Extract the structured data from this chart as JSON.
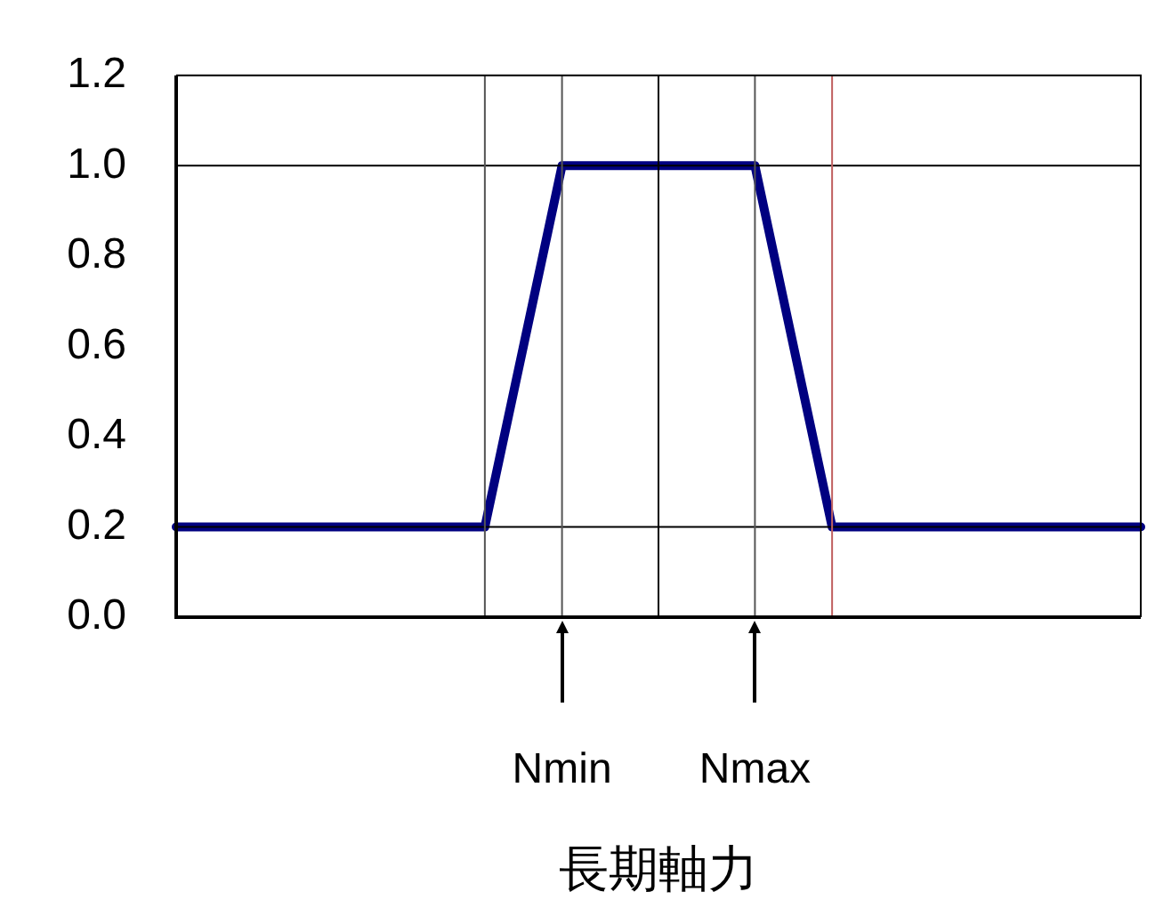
{
  "chart_data": {
    "type": "line",
    "xlabel": "長期軸力",
    "categories": [
      null,
      null,
      null,
      null,
      null,
      null,
      null,
      null,
      null,
      null,
      null,
      null,
      null,
      null,
      null,
      null,
      null,
      null,
      null,
      null,
      "Nmin",
      null,
      null,
      null,
      null,
      null,
      null,
      null,
      null,
      null,
      "Nmax",
      null,
      null,
      null,
      null,
      null,
      null,
      null,
      null,
      null,
      null,
      null,
      null,
      null,
      null,
      null,
      null,
      null,
      null,
      null,
      null
    ],
    "series": [
      {
        "color": "#000080",
        "values": [
          0.2,
          null,
          null,
          null,
          null,
          null,
          null,
          null,
          null,
          null,
          null,
          null,
          null,
          null,
          null,
          null,
          0.2,
          null,
          null,
          null,
          1.0,
          null,
          null,
          null,
          null,
          null,
          null,
          null,
          null,
          null,
          1.0,
          null,
          null,
          null,
          0.2,
          null,
          null,
          null,
          null,
          null,
          null,
          null,
          null,
          null,
          null,
          null,
          null,
          null,
          null,
          null,
          0.2
        ]
      }
    ],
    "ylim": [
      0,
      1.2
    ],
    "yticks": [
      {
        "value": 0,
        "label": "0.0"
      },
      {
        "value": 0.2,
        "label": "0.2"
      },
      {
        "value": 0.4,
        "label": "0.4"
      },
      {
        "value": 0.6,
        "label": "0.6"
      },
      {
        "value": 0.8,
        "label": "0.8"
      },
      {
        "value": 1.0,
        "label": "1.0"
      },
      {
        "value": 1.2,
        "label": "1.2"
      }
    ],
    "ref_lines": [
      {
        "axis": "y",
        "value": 0.2,
        "color": "#000000"
      },
      {
        "axis": "y",
        "value": 1.0,
        "color": "#000000"
      }
    ],
    "grid": "x",
    "marker": "none",
    "line_style": "solid"
  }
}
